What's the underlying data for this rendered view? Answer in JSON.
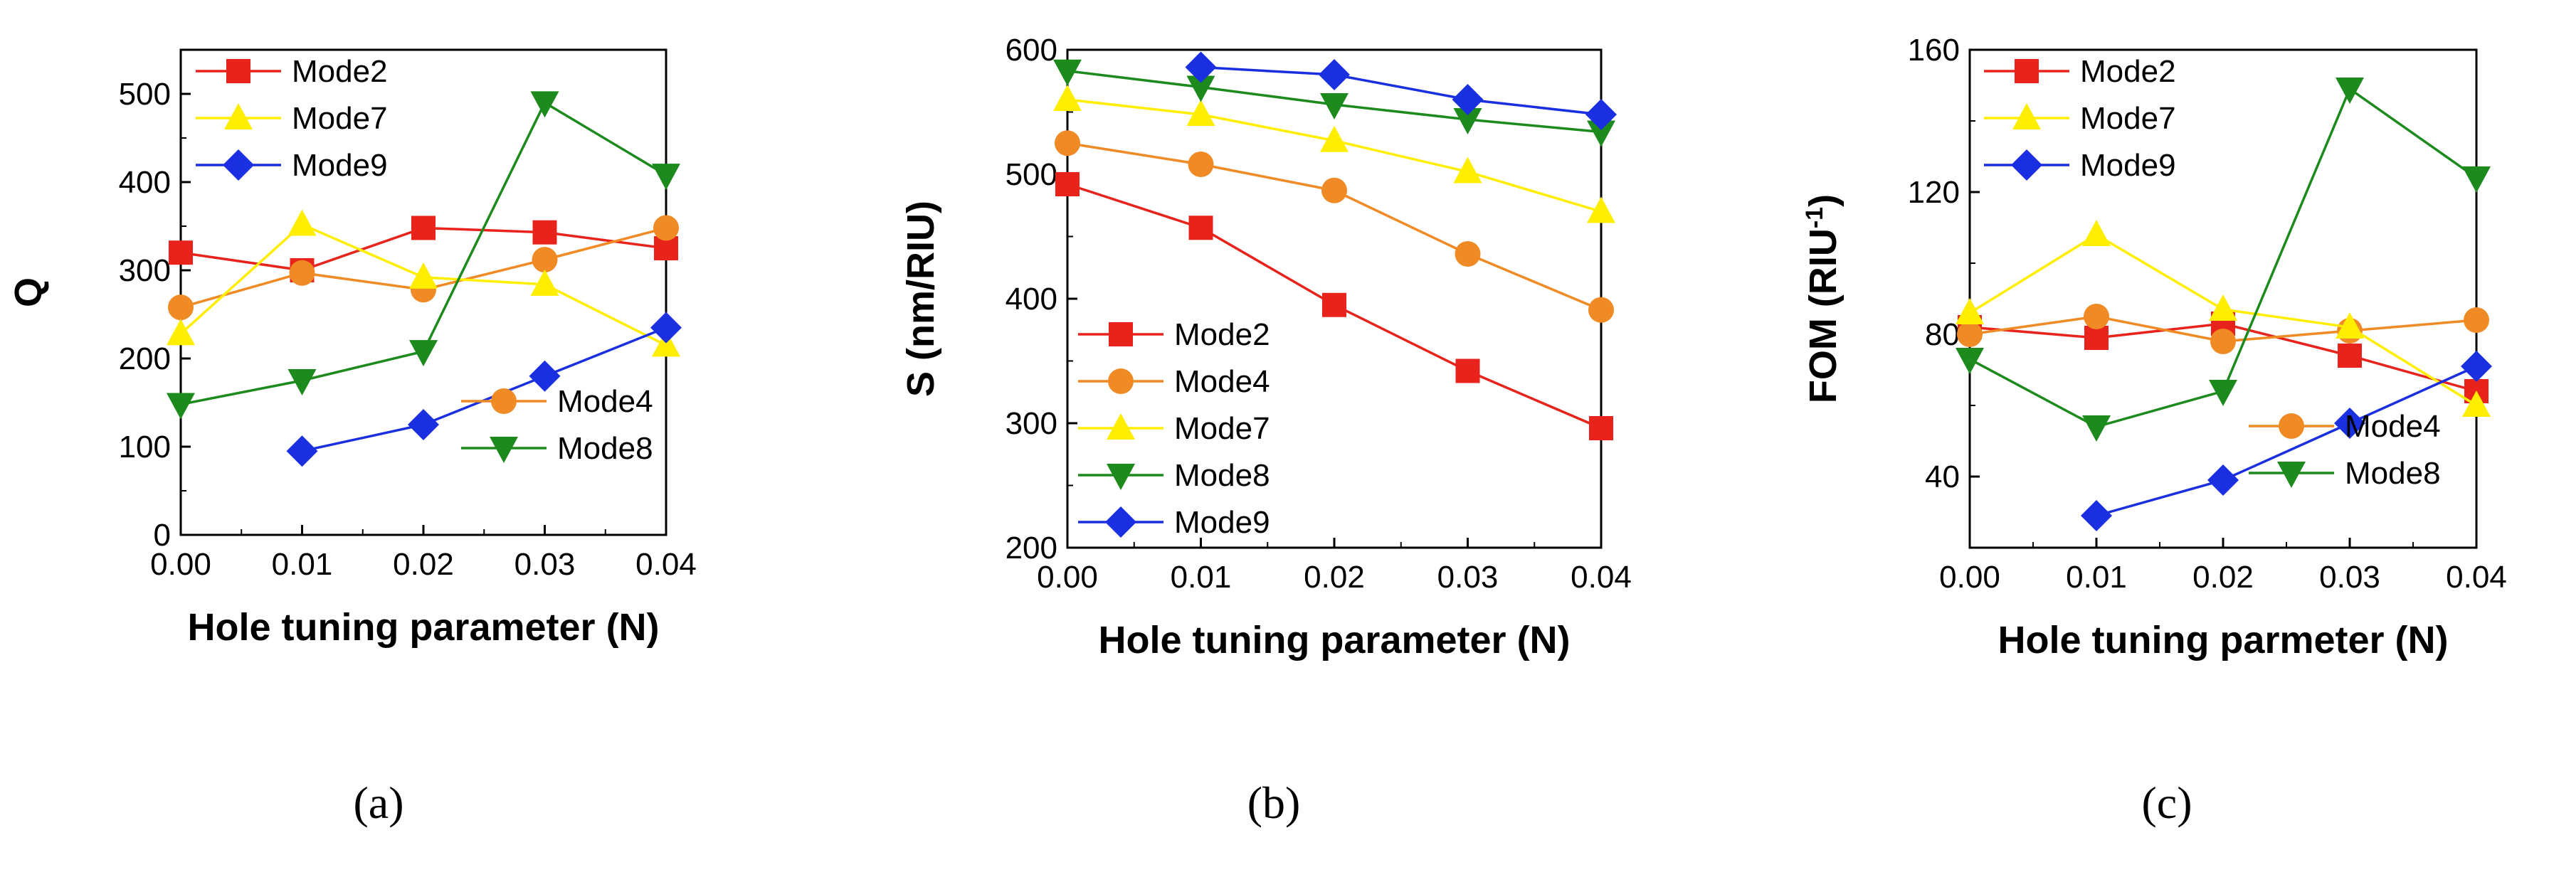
{
  "chart_data": [
    {
      "type": "line",
      "panel_label": "(a)",
      "xlabel": "Hole tuning parameter (N)",
      "ylabel": "Q",
      "ylabel_sup": "",
      "ylabel_suffix": "",
      "x": [
        0.0,
        0.01,
        0.02,
        0.03,
        0.04
      ],
      "xticks": [
        "0.00",
        "0.01",
        "0.02",
        "0.03",
        "0.04"
      ],
      "ylim": [
        0,
        550
      ],
      "yticks": [
        0,
        100,
        200,
        300,
        400,
        500
      ],
      "ytick_labels": [
        "0",
        "100",
        "200",
        "300",
        "400",
        "500"
      ],
      "legends": [
        {
          "placement": "top-left",
          "entries": [
            "Mode2",
            "Mode7",
            "Mode9"
          ]
        },
        {
          "placement": "bottom-right",
          "entries": [
            "Mode4",
            "Mode8"
          ]
        }
      ],
      "series": [
        {
          "name": "Mode2",
          "color": "#e8231c",
          "marker": "square",
          "values": [
            320,
            300,
            348,
            343,
            325
          ]
        },
        {
          "name": "Mode4",
          "color": "#f08a24",
          "marker": "circle",
          "values": [
            258,
            297,
            278,
            312,
            348
          ]
        },
        {
          "name": "Mode7",
          "color": "#ffee00",
          "marker": "triangle-up",
          "values": [
            228,
            352,
            292,
            284,
            215
          ]
        },
        {
          "name": "Mode8",
          "color": "#1d8a1d",
          "marker": "triangle-down",
          "values": [
            148,
            175,
            208,
            490,
            408
          ]
        },
        {
          "name": "Mode9",
          "color": "#1a2fe0",
          "marker": "diamond",
          "values": [
            null,
            95,
            125,
            180,
            235
          ]
        }
      ]
    },
    {
      "type": "line",
      "panel_label": "(b)",
      "xlabel": "Hole tuning parameter (N)",
      "ylabel": "S (nm/RIU)",
      "ylabel_sup": "",
      "ylabel_suffix": "",
      "x": [
        0.0,
        0.01,
        0.02,
        0.03,
        0.04
      ],
      "xticks": [
        "0.00",
        "0.01",
        "0.02",
        "0.03",
        "0.04"
      ],
      "ylim": [
        200,
        600
      ],
      "yticks": [
        200,
        300,
        400,
        500,
        600
      ],
      "ytick_labels": [
        "200",
        "300",
        "400",
        "500",
        "600"
      ],
      "legends": [
        {
          "placement": "bottom-left",
          "entries": [
            "Mode2",
            "Mode4",
            "Mode7",
            "Mode8",
            "Mode9"
          ]
        }
      ],
      "series": [
        {
          "name": "Mode2",
          "color": "#e8231c",
          "marker": "square",
          "values": [
            492,
            457,
            395,
            342,
            296
          ]
        },
        {
          "name": "Mode4",
          "color": "#f08a24",
          "marker": "circle",
          "values": [
            525,
            508,
            487,
            436,
            391
          ]
        },
        {
          "name": "Mode7",
          "color": "#ffee00",
          "marker": "triangle-up",
          "values": [
            560,
            548,
            527,
            502,
            470
          ]
        },
        {
          "name": "Mode8",
          "color": "#1d8a1d",
          "marker": "triangle-down",
          "values": [
            583,
            570,
            556,
            544,
            534
          ]
        },
        {
          "name": "Mode9",
          "color": "#1a2fe0",
          "marker": "diamond",
          "values": [
            null,
            586,
            580,
            560,
            548
          ]
        }
      ]
    },
    {
      "type": "line",
      "panel_label": "(c)",
      "xlabel": "Hole tuning parmeter (N)",
      "ylabel": "FOM (RIU",
      "ylabel_sup": "-1",
      "ylabel_suffix": ")",
      "x": [
        0.0,
        0.01,
        0.02,
        0.03,
        0.04
      ],
      "xticks": [
        "0.00",
        "0.01",
        "0.02",
        "0.03",
        "0.04"
      ],
      "ylim": [
        20,
        160
      ],
      "yticks": [
        40,
        80,
        120,
        160
      ],
      "ytick_labels": [
        "40",
        "80",
        "120",
        "160"
      ],
      "legends": [
        {
          "placement": "top-left",
          "entries": [
            "Mode2",
            "Mode7",
            "Mode9"
          ]
        },
        {
          "placement": "bottom-right",
          "entries": [
            "Mode4",
            "Mode8"
          ]
        }
      ],
      "series": [
        {
          "name": "Mode2",
          "color": "#e8231c",
          "marker": "square",
          "values": [
            82,
            79,
            83,
            74,
            64
          ]
        },
        {
          "name": "Mode4",
          "color": "#f08a24",
          "marker": "circle",
          "values": [
            80,
            85,
            78,
            81,
            84
          ]
        },
        {
          "name": "Mode7",
          "color": "#ffee00",
          "marker": "triangle-up",
          "values": [
            86,
            108,
            87,
            82,
            60
          ]
        },
        {
          "name": "Mode8",
          "color": "#1d8a1d",
          "marker": "triangle-down",
          "values": [
            73,
            54,
            64,
            149,
            124
          ]
        },
        {
          "name": "Mode9",
          "color": "#1a2fe0",
          "marker": "diamond",
          "values": [
            null,
            29,
            39,
            55,
            71
          ]
        }
      ]
    }
  ]
}
